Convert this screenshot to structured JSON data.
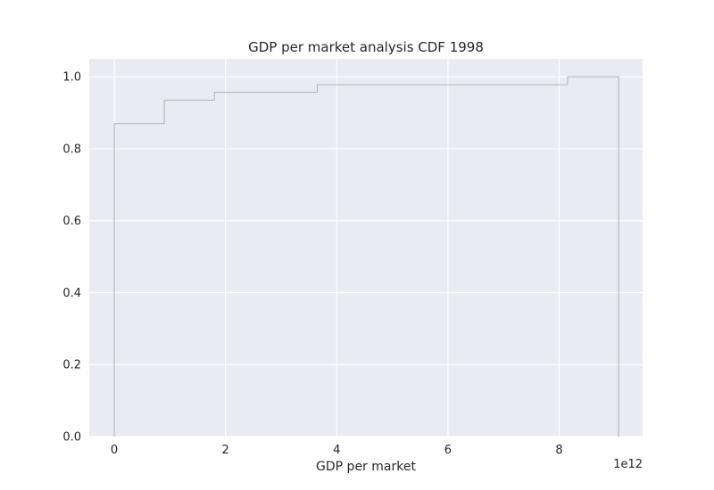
{
  "chart_data": {
    "type": "line",
    "subtype": "step-cdf",
    "title": "GDP per market analysis CDF 1998",
    "xlabel": "GDP per market",
    "ylabel": "",
    "x_offset_label": "1e12",
    "x_scale_factor": 1000000000000.0,
    "xlim": [
      -450000000000.0,
      9500000000000.0
    ],
    "ylim": [
      0.0,
      1.05
    ],
    "x_ticks": [
      0,
      2000000000000.0,
      4000000000000.0,
      6000000000000.0,
      8000000000000.0
    ],
    "x_tick_labels": [
      "0",
      "2",
      "4",
      "6",
      "8"
    ],
    "y_ticks": [
      0.0,
      0.2,
      0.4,
      0.6,
      0.8,
      1.0
    ],
    "y_tick_labels": [
      "0.0",
      "0.2",
      "0.4",
      "0.6",
      "0.8",
      "1.0"
    ],
    "grid": true,
    "series": [
      {
        "x": [
          0,
          900000000000.0,
          1800000000000.0,
          3650000000000.0,
          8150000000000.0,
          9070000000000.0
        ],
        "y": [
          0.87,
          0.935,
          0.957,
          0.978,
          1.0,
          1.0
        ],
        "color": "#b9b9b9"
      }
    ]
  },
  "colors": {
    "plot_background": "#eaeaf2",
    "grid": "#ffffff",
    "text": "#262626"
  }
}
